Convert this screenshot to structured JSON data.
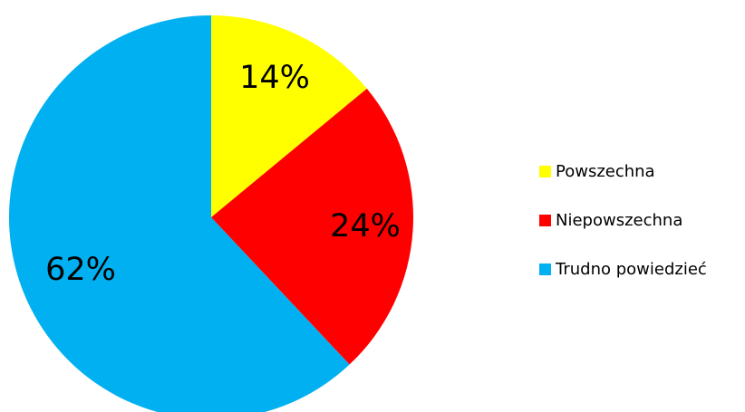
{
  "chart_data": {
    "type": "pie",
    "categories": [
      "Powszechna",
      "Niepowszechna",
      "Trudno powiedzieć"
    ],
    "values": [
      14,
      24,
      62
    ],
    "labels": [
      "14%",
      "24%",
      "62%"
    ],
    "colors": [
      "#FFFF00",
      "#FF0000",
      "#00B0F0"
    ],
    "start": "12 o'clock",
    "direction": "clockwise",
    "legend_position": "right"
  }
}
